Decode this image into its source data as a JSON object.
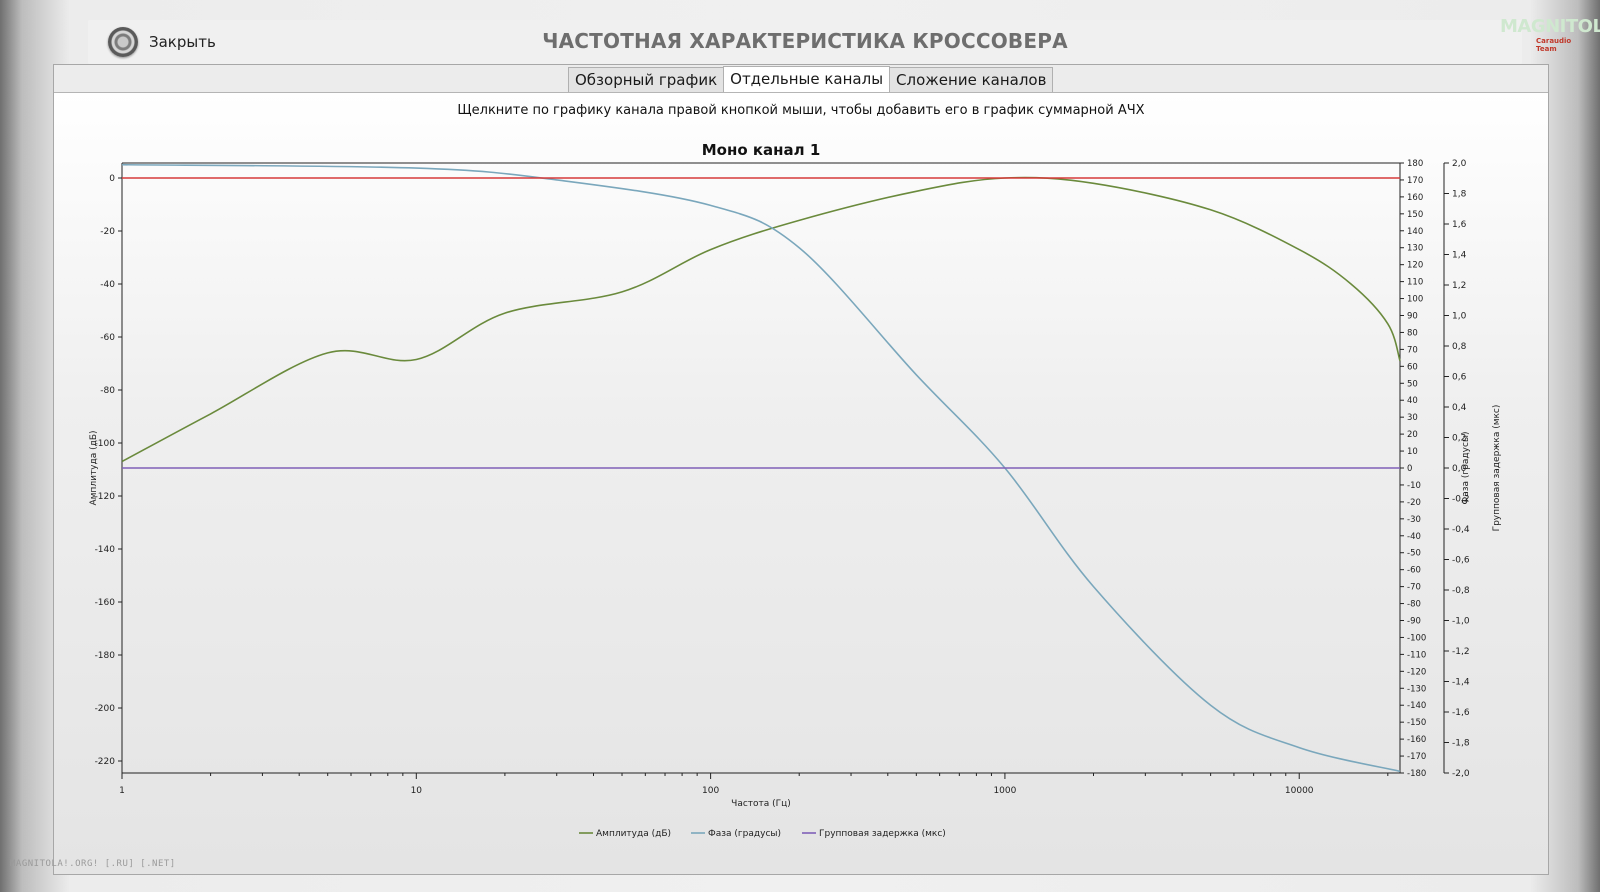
{
  "header": {
    "close_label": "Закрыть",
    "title": "ЧАСТОТНАЯ ХАРАКТЕРИСТИКА КРОССОВЕРА",
    "logo_main": "MAGNITOLA",
    "logo_sub": "Caraudio Team"
  },
  "tabs": [
    {
      "label": "Обзорный график",
      "active": false
    },
    {
      "label": "Отдельные каналы",
      "active": true
    },
    {
      "label": "Сложение каналов",
      "active": false
    }
  ],
  "hint": "Щелкните по графику канала правой кнопкой мыши, чтобы добавить его в график суммарной АЧХ",
  "footer_watermark": "MAGNITOLA!.ORG! [.RU] [.NET]",
  "colors": {
    "amplitude": "#6a8a3c",
    "phase": "#7aa7bc",
    "delay": "#8060b8",
    "zero_line": "#d63a3a",
    "axis": "#222222"
  },
  "chart_data": {
    "type": "line",
    "title": "Моно канал 1",
    "xlabel": "Частота (Гц)",
    "ylabel_left": "Амплитуда (дБ)",
    "ylabel_right1": "Фаза (градусы)",
    "ylabel_right2": "Групповая задержка (мкс)",
    "x_scale": "log",
    "xlim": [
      1,
      22000
    ],
    "x_ticks": [
      1,
      10,
      100,
      1000,
      10000
    ],
    "ylim_left": [
      -225,
      5
    ],
    "ylim_right1": [
      -180,
      180
    ],
    "ylim_right2": [
      -2.0,
      2.0
    ],
    "y_ticks_left": [
      "0",
      "-20",
      "-40",
      "-60",
      "-80",
      "-100",
      "-120",
      "-140",
      "-160",
      "-180",
      "-200",
      "-220"
    ],
    "y_ticks_right1": [
      "180",
      "170",
      "160",
      "150",
      "140",
      "130",
      "120",
      "110",
      "100",
      "90",
      "80",
      "70",
      "60",
      "50",
      "40",
      "30",
      "20",
      "10",
      "0",
      "-10",
      "-20",
      "-30",
      "-40",
      "-50",
      "-60",
      "-70",
      "-80",
      "-90",
      "-100",
      "-110",
      "-120",
      "-130",
      "-140",
      "-150",
      "-160",
      "-170",
      "-180"
    ],
    "y_ticks_right2": [
      "2,0",
      "1,8",
      "1,6",
      "1,4",
      "1,2",
      "1,0",
      "0,8",
      "0,6",
      "0,4",
      "0,2",
      "0,0",
      "-0,2",
      "-0,4",
      "-0,6",
      "-0,8",
      "-1,0",
      "-1,2",
      "-1,4",
      "-1,6",
      "-1,8",
      "-2,0"
    ],
    "legend_position": "bottom",
    "grid": false,
    "series": [
      {
        "name": "Амплитуда (дБ)",
        "axis": "left",
        "x": [
          1,
          2,
          5,
          10,
          20,
          50,
          100,
          200,
          500,
          1000,
          2000,
          5000,
          10000,
          15000,
          20000,
          22000
        ],
        "values": [
          -107,
          -89,
          -66,
          -68.5,
          -51,
          -43,
          -27,
          -16,
          -5,
          0,
          -2,
          -12,
          -27,
          -40,
          -55,
          -69
        ]
      },
      {
        "name": "Фаза (градусы)",
        "axis": "right1",
        "x": [
          1,
          10,
          30,
          100,
          200,
          500,
          1000,
          2000,
          5000,
          10000,
          22000
        ],
        "values": [
          179,
          177,
          170,
          155,
          130,
          55,
          0,
          -70,
          -140,
          -165,
          -179
        ]
      },
      {
        "name": "Групповая задержка (мкс)",
        "axis": "right2",
        "x": [
          1,
          22000
        ],
        "values": [
          0.0,
          0.0
        ]
      },
      {
        "name": "",
        "axis": "left",
        "x": [
          1,
          22000
        ],
        "values": [
          0,
          0
        ]
      }
    ]
  }
}
